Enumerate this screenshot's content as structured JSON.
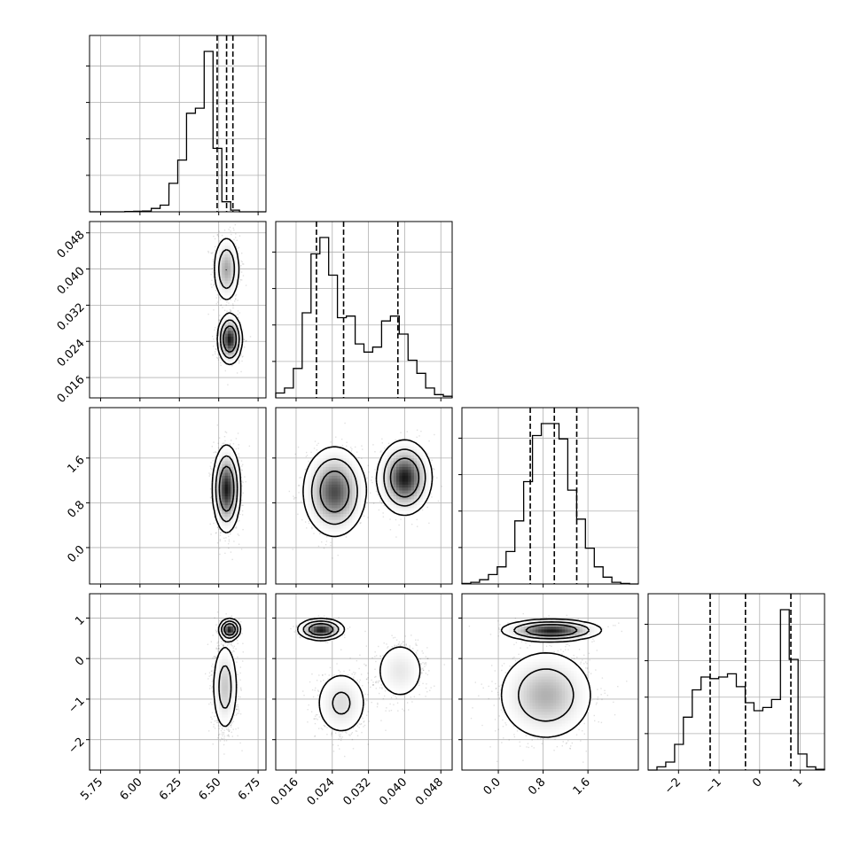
{
  "chart_data": {
    "type": "corner",
    "parameters": [
      {
        "range": [
          5.68,
          6.8
        ],
        "ticks": [
          5.75,
          6.0,
          6.25,
          6.5,
          6.75
        ],
        "tick_labels": [
          "5.75",
          "6.00",
          "6.25",
          "6.50",
          "6.75"
        ],
        "quantiles": [
          6.49,
          6.55,
          6.59
        ]
      },
      {
        "range": [
          0.0115,
          0.0505
        ],
        "ticks": [
          0.016,
          0.024,
          0.032,
          0.04,
          0.048
        ],
        "tick_labels": [
          "0.016",
          "0.024",
          "0.032",
          "0.040",
          "0.048"
        ],
        "quantiles": [
          0.0205,
          0.0265,
          0.0385
        ]
      },
      {
        "range": [
          -0.65,
          2.5
        ],
        "ticks": [
          0.0,
          0.8,
          1.6
        ],
        "tick_labels": [
          "0.0",
          "0.8",
          "1.6"
        ],
        "quantiles": [
          0.57,
          1.0,
          1.4
        ]
      },
      {
        "range": [
          -2.75,
          1.6
        ],
        "ticks": [
          -2,
          -1,
          0,
          1
        ],
        "tick_labels": [
          "−2",
          "−1",
          "0",
          "1"
        ],
        "quantiles": [
          -1.22,
          -0.35,
          0.77
        ]
      }
    ],
    "histograms": [
      {
        "values": [
          0,
          0,
          0,
          0,
          0.002,
          0.003,
          0.005,
          0.02,
          0.04,
          0.17,
          0.31,
          0.59,
          0.62,
          0.96,
          0.38,
          0.06,
          0.01,
          0,
          0,
          0
        ]
      },
      {
        "values": [
          0.03,
          0.06,
          0.18,
          0.52,
          0.88,
          0.98,
          0.75,
          0.49,
          0.5,
          0.33,
          0.28,
          0.31,
          0.47,
          0.5,
          0.39,
          0.23,
          0.15,
          0.06,
          0.02,
          0.01
        ]
      },
      {
        "values": [
          0.003,
          0.01,
          0.025,
          0.055,
          0.1,
          0.19,
          0.37,
          0.6,
          0.87,
          0.94,
          0.94,
          0.85,
          0.55,
          0.38,
          0.21,
          0.1,
          0.04,
          0.01,
          0.003,
          0
        ]
      },
      {
        "values": [
          0,
          0.02,
          0.05,
          0.16,
          0.33,
          0.5,
          0.58,
          0.57,
          0.58,
          0.6,
          0.52,
          0.42,
          0.37,
          0.39,
          0.44,
          1.0,
          0.69,
          0.1,
          0.02,
          0.005
        ]
      }
    ],
    "joint_components": [
      {
        "pair": [
          1,
          0
        ],
        "components": [
          {
            "mean": [
              6.57,
              0.0245
            ],
            "sd": [
              0.035,
              0.0025
            ],
            "w": 0.55
          },
          {
            "mean": [
              6.55,
              0.04
            ],
            "sd": [
              0.04,
              0.0035
            ],
            "w": 0.45
          }
        ]
      },
      {
        "pair": [
          2,
          0
        ],
        "components": [
          {
            "mean": [
              6.55,
              1.05
            ],
            "sd": [
              0.04,
              0.35
            ],
            "w": 1.0
          }
        ]
      },
      {
        "pair": [
          2,
          1
        ],
        "components": [
          {
            "mean": [
              0.0245,
              1.0
            ],
            "sd": [
              0.0032,
              0.37
            ],
            "w": 0.55
          },
          {
            "mean": [
              0.04,
              1.25
            ],
            "sd": [
              0.0027,
              0.3
            ],
            "w": 0.45
          }
        ]
      },
      {
        "pair": [
          3,
          0
        ],
        "components": [
          {
            "mean": [
              6.57,
              0.72
            ],
            "sd": [
              0.03,
              0.12
            ],
            "w": 0.3
          },
          {
            "mean": [
              6.54,
              -0.7
            ],
            "sd": [
              0.04,
              0.55
            ],
            "w": 0.7
          }
        ]
      },
      {
        "pair": [
          3,
          1
        ],
        "components": [
          {
            "mean": [
              0.0215,
              0.72
            ],
            "sd": [
              0.0023,
              0.12
            ],
            "w": 0.3
          },
          {
            "mean": [
              0.026,
              -1.1
            ],
            "sd": [
              0.003,
              0.42
            ],
            "w": 0.4
          },
          {
            "mean": [
              0.039,
              -0.3
            ],
            "sd": [
              0.003,
              0.4
            ],
            "w": 0.3
          }
        ]
      },
      {
        "pair": [
          3,
          2
        ],
        "components": [
          {
            "mean": [
              0.95,
              0.7
            ],
            "sd": [
              0.4,
              0.12
            ],
            "w": 0.3
          },
          {
            "mean": [
              0.85,
              -0.9
            ],
            "sd": [
              0.42,
              0.55
            ],
            "w": 0.7
          }
        ]
      }
    ],
    "grid": true,
    "title": "",
    "xlabel": "",
    "ylabel": ""
  }
}
